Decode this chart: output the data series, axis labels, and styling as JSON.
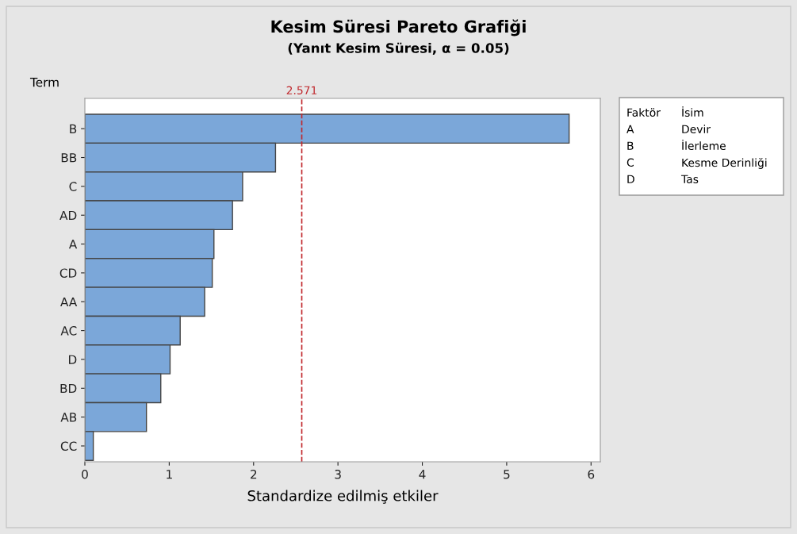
{
  "chart_data": {
    "type": "bar",
    "orientation": "horizontal",
    "title": "Kesim Süresi Pareto Grafiği",
    "subtitle": "(Yanıt Kesim Süresi, α = 0.05)",
    "xlabel": "Standardize edilmiş etkiler",
    "ylabel": "Term",
    "categories": [
      "B",
      "BB",
      "C",
      "AD",
      "A",
      "CD",
      "AA",
      "AC",
      "D",
      "BD",
      "AB",
      "CC"
    ],
    "values": [
      5.74,
      2.26,
      1.87,
      1.75,
      1.53,
      1.51,
      1.42,
      1.13,
      1.01,
      0.9,
      0.73,
      0.1
    ],
    "color": "#7ba7d9",
    "xlim": [
      0,
      6.11
    ],
    "xticks": [
      0,
      1,
      2,
      3,
      4,
      5,
      6
    ],
    "grid": false,
    "ref_lines": [
      {
        "axis": "x",
        "value": 2.571,
        "label": "2.571",
        "color": "#c0282d",
        "line_style": "dashed"
      }
    ],
    "annotations": [
      "Faktör",
      "İsim",
      "A",
      "Devir",
      "B",
      "İlerleme",
      "C",
      "Kesme Derinliği",
      "D",
      "Tas"
    ]
  }
}
